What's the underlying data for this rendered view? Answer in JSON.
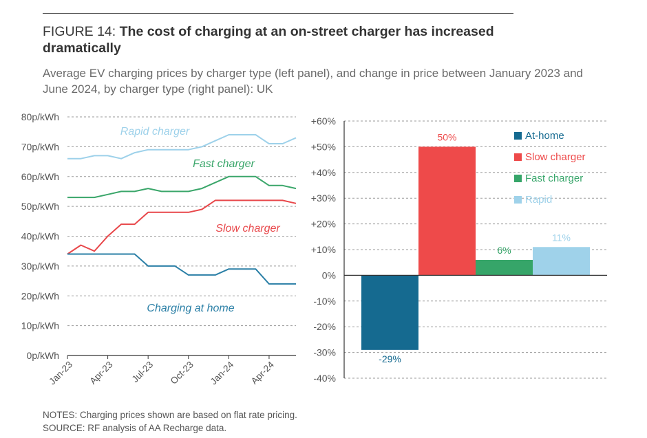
{
  "figure": {
    "label": "FIGURE 14:",
    "title": "The cost of charging at an on-street charger has increased dramatically",
    "subtitle": "Average EV charging prices by charger type (left panel), and change in price between January 2023 and June 2024, by charger type (right panel): UK",
    "notes": "NOTES: Charging prices shown are based on flat rate pricing.",
    "source": "SOURCE: RF analysis of AA Recharge data."
  },
  "chart_data": [
    {
      "type": "line",
      "ylim": [
        0,
        80
      ],
      "y_ticks": [
        "0p/kWh",
        "10p/kWh",
        "20p/kWh",
        "30p/kWh",
        "40p/kWh",
        "50p/kWh",
        "60p/kWh",
        "70p/kWh",
        "80p/kWh"
      ],
      "x_tick_labels": [
        "Jan-23",
        "Apr-23",
        "Jul-23",
        "Oct-23",
        "Jan-24",
        "Apr-24"
      ],
      "x_tick_index": [
        0,
        3,
        6,
        9,
        12,
        15
      ],
      "x_count": 18,
      "grid": true,
      "series": [
        {
          "name": "Rapid charger",
          "color": "#9dd1ea",
          "values": [
            66,
            66,
            67,
            67,
            66,
            68,
            69,
            69,
            69,
            69,
            70,
            72,
            74,
            74,
            74,
            71,
            71,
            73
          ]
        },
        {
          "name": "Fast charger",
          "color": "#3aa66a",
          "values": [
            53,
            53,
            53,
            54,
            55,
            55,
            56,
            55,
            55,
            55,
            56,
            58,
            60,
            60,
            60,
            57,
            57,
            56
          ]
        },
        {
          "name": "Slow charger",
          "color": "#e8474a",
          "values": [
            34,
            37,
            35,
            40,
            44,
            44,
            48,
            48,
            48,
            48,
            49,
            52,
            52,
            52,
            52,
            52,
            52,
            51
          ]
        },
        {
          "name": "Charging at home",
          "color": "#2a7fa6",
          "values": [
            34,
            34,
            34,
            34,
            34,
            34,
            30,
            30,
            30,
            27,
            27,
            27,
            29,
            29,
            29,
            24,
            24,
            24
          ]
        }
      ]
    },
    {
      "type": "bar",
      "categories": [
        "At-home",
        "Slow charger",
        "Fast charger",
        "Rapid"
      ],
      "values": [
        -29,
        50,
        6,
        11
      ],
      "labels": [
        "-29%",
        "50%",
        "6%",
        "11%"
      ],
      "colors": [
        "#156a90",
        "#ee4a4a",
        "#36a569",
        "#9fd2ea"
      ],
      "ylim": [
        -40,
        60
      ],
      "y_ticks": [
        "-40%",
        "-30%",
        "-20%",
        "-10%",
        "0%",
        "+10%",
        "+20%",
        "+30%",
        "+40%",
        "+50%",
        "+60%"
      ],
      "legend": "top-right",
      "grid": true
    }
  ]
}
